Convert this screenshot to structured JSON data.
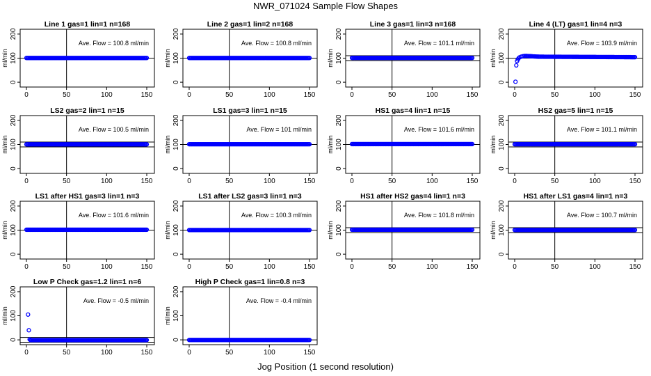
{
  "figure": {
    "title": "NWR_071024  Sample Flow Shapes",
    "xlabel": "Jog Position (1 second resolution)"
  },
  "style": {
    "point_color": "#0000ff",
    "axis_color": "#000000"
  },
  "chart_data": [
    {
      "type": "scatter",
      "title": "Line 1 gas=1 lin=1 n=168",
      "ylabel": "ml/min",
      "xlim": [
        0,
        150
      ],
      "ylim": [
        -20,
        220
      ],
      "xticks": [
        0,
        50,
        100,
        150
      ],
      "yticks": [
        0,
        100,
        200
      ],
      "vline": 50,
      "hline": [
        100
      ],
      "annotation": "Ave. Flow =  100.8  ml/min",
      "series": [
        {
          "x": [
            0,
            150
          ],
          "y": [
            100.8,
            100.8
          ]
        }
      ]
    },
    {
      "type": "scatter",
      "title": "Line 2 gas=1 lin=2 n=168",
      "ylabel": "ml/min",
      "xlim": [
        0,
        150
      ],
      "ylim": [
        -20,
        220
      ],
      "xticks": [
        0,
        50,
        100,
        150
      ],
      "yticks": [
        0,
        100,
        200
      ],
      "vline": 50,
      "hline": [
        100
      ],
      "annotation": "Ave. Flow =  100.8  ml/min",
      "series": [
        {
          "x": [
            0,
            150
          ],
          "y": [
            100.8,
            100.8
          ]
        }
      ]
    },
    {
      "type": "scatter",
      "title": "Line 3 gas=1 lin=3 n=168",
      "ylabel": "ml/min",
      "xlim": [
        0,
        150
      ],
      "ylim": [
        -20,
        220
      ],
      "xticks": [
        0,
        50,
        100,
        150
      ],
      "yticks": [
        0,
        100,
        200
      ],
      "vline": 50,
      "hline": [
        90,
        110
      ],
      "annotation": "Ave. Flow =  101.1  ml/min",
      "series": [
        {
          "x": [
            0,
            150
          ],
          "y": [
            101.1,
            101.1
          ]
        }
      ]
    },
    {
      "type": "scatter",
      "title": "Line 4 (LT) gas=1 lin=4 n=3",
      "ylabel": "ml/min",
      "xlim": [
        0,
        150
      ],
      "ylim": [
        -20,
        220
      ],
      "xticks": [
        0,
        50,
        100,
        150
      ],
      "yticks": [
        0,
        100,
        200
      ],
      "vline": 50,
      "hline": [
        100
      ],
      "annotation": "Ave. Flow =  103.9  ml/min",
      "series": [
        {
          "x": [
            1,
            2,
            3,
            4,
            5,
            6,
            8,
            10,
            12,
            15,
            20,
            30,
            150
          ],
          "y": [
            2,
            70,
            88,
            95,
            100,
            103,
            106,
            108,
            109,
            109,
            108,
            106,
            104
          ]
        }
      ]
    },
    {
      "type": "scatter",
      "title": "LS2 gas=2 lin=1 n=15",
      "ylabel": "ml/min",
      "xlim": [
        0,
        150
      ],
      "ylim": [
        -20,
        220
      ],
      "xticks": [
        0,
        50,
        100,
        150
      ],
      "yticks": [
        0,
        100,
        200
      ],
      "vline": 50,
      "hline": [
        90,
        110
      ],
      "annotation": "Ave. Flow =  100.5  ml/min",
      "series": [
        {
          "x": [
            0,
            150
          ],
          "y": [
            100.5,
            100.5
          ]
        }
      ]
    },
    {
      "type": "scatter",
      "title": "LS1 gas=3 lin=1 n=15",
      "ylabel": "ml/min",
      "xlim": [
        0,
        150
      ],
      "ylim": [
        -20,
        220
      ],
      "xticks": [
        0,
        50,
        100,
        150
      ],
      "yticks": [
        0,
        100,
        200
      ],
      "vline": 50,
      "hline": [
        100
      ],
      "annotation": "Ave. Flow =  101  ml/min",
      "series": [
        {
          "x": [
            0,
            150
          ],
          "y": [
            101,
            101
          ]
        }
      ]
    },
    {
      "type": "scatter",
      "title": "HS1 gas=4 lin=1 n=15",
      "ylabel": "ml/min",
      "xlim": [
        0,
        150
      ],
      "ylim": [
        -20,
        220
      ],
      "xticks": [
        0,
        50,
        100,
        150
      ],
      "yticks": [
        0,
        100,
        200
      ],
      "vline": 50,
      "hline": [
        100
      ],
      "annotation": "Ave. Flow =  101.6  ml/min",
      "series": [
        {
          "x": [
            0,
            150
          ],
          "y": [
            101.6,
            101.6
          ]
        }
      ]
    },
    {
      "type": "scatter",
      "title": "HS2 gas=5 lin=1 n=15",
      "ylabel": "ml/min",
      "xlim": [
        0,
        150
      ],
      "ylim": [
        -20,
        220
      ],
      "xticks": [
        0,
        50,
        100,
        150
      ],
      "yticks": [
        0,
        100,
        200
      ],
      "vline": 50,
      "hline": [
        90,
        110
      ],
      "annotation": "Ave. Flow =  101.1  ml/min",
      "series": [
        {
          "x": [
            0,
            150
          ],
          "y": [
            101.1,
            101.1
          ]
        }
      ]
    },
    {
      "type": "scatter",
      "title": "LS1 after HS1 gas=3 lin=1 n=3",
      "ylabel": "ml/min",
      "xlim": [
        0,
        150
      ],
      "ylim": [
        -20,
        220
      ],
      "xticks": [
        0,
        50,
        100,
        150
      ],
      "yticks": [
        0,
        100,
        200
      ],
      "vline": 50,
      "hline": [
        100
      ],
      "annotation": "Ave. Flow =  101.6  ml/min",
      "series": [
        {
          "x": [
            0,
            150
          ],
          "y": [
            101.6,
            101.6
          ]
        }
      ]
    },
    {
      "type": "scatter",
      "title": "LS1 after LS2 gas=3 lin=1 n=3",
      "ylabel": "ml/min",
      "xlim": [
        0,
        150
      ],
      "ylim": [
        -20,
        220
      ],
      "xticks": [
        0,
        50,
        100,
        150
      ],
      "yticks": [
        0,
        100,
        200
      ],
      "vline": 50,
      "hline": [
        100
      ],
      "annotation": "Ave. Flow =  100.3  ml/min",
      "series": [
        {
          "x": [
            0,
            150
          ],
          "y": [
            100.3,
            100.3
          ]
        }
      ]
    },
    {
      "type": "scatter",
      "title": "HS1 after HS2 gas=4 lin=1 n=3",
      "ylabel": "ml/min",
      "xlim": [
        0,
        150
      ],
      "ylim": [
        -20,
        220
      ],
      "xticks": [
        0,
        50,
        100,
        150
      ],
      "yticks": [
        0,
        100,
        200
      ],
      "vline": 50,
      "hline": [
        90,
        110
      ],
      "annotation": "Ave. Flow =  101.8  ml/min",
      "series": [
        {
          "x": [
            0,
            150
          ],
          "y": [
            101.8,
            101.8
          ]
        }
      ]
    },
    {
      "type": "scatter",
      "title": "HS1 after LS1 gas=4 lin=1 n=3",
      "ylabel": "ml/min",
      "xlim": [
        0,
        150
      ],
      "ylim": [
        -20,
        220
      ],
      "xticks": [
        0,
        50,
        100,
        150
      ],
      "yticks": [
        0,
        100,
        200
      ],
      "vline": 50,
      "hline": [
        90,
        110
      ],
      "annotation": "Ave. Flow =  100.7  ml/min",
      "series": [
        {
          "x": [
            0,
            150
          ],
          "y": [
            100.7,
            100.7
          ]
        }
      ]
    },
    {
      "type": "scatter",
      "title": "Low P Check gas=1.2 lin=1 n=6",
      "ylabel": "ml/min",
      "xlim": [
        0,
        150
      ],
      "ylim": [
        -20,
        220
      ],
      "xticks": [
        0,
        50,
        100,
        150
      ],
      "yticks": [
        0,
        100,
        200
      ],
      "vline": 50,
      "hline": [
        -10,
        10
      ],
      "annotation": "Ave. Flow =  -0.5  ml/min",
      "series": [
        {
          "x": [
            2,
            3,
            4,
            5,
            150
          ],
          "y": [
            105,
            40,
            2,
            -1,
            -1
          ]
        }
      ]
    },
    {
      "type": "scatter",
      "title": "High P Check gas=1 lin=0.8 n=3",
      "ylabel": "ml/min",
      "xlim": [
        0,
        150
      ],
      "ylim": [
        -20,
        220
      ],
      "xticks": [
        0,
        50,
        100,
        150
      ],
      "yticks": [
        0,
        100,
        200
      ],
      "vline": 50,
      "hline": [
        0
      ],
      "annotation": "Ave. Flow =  -0.4  ml/min",
      "series": [
        {
          "x": [
            0,
            150
          ],
          "y": [
            -0.4,
            -0.4
          ]
        }
      ]
    }
  ]
}
